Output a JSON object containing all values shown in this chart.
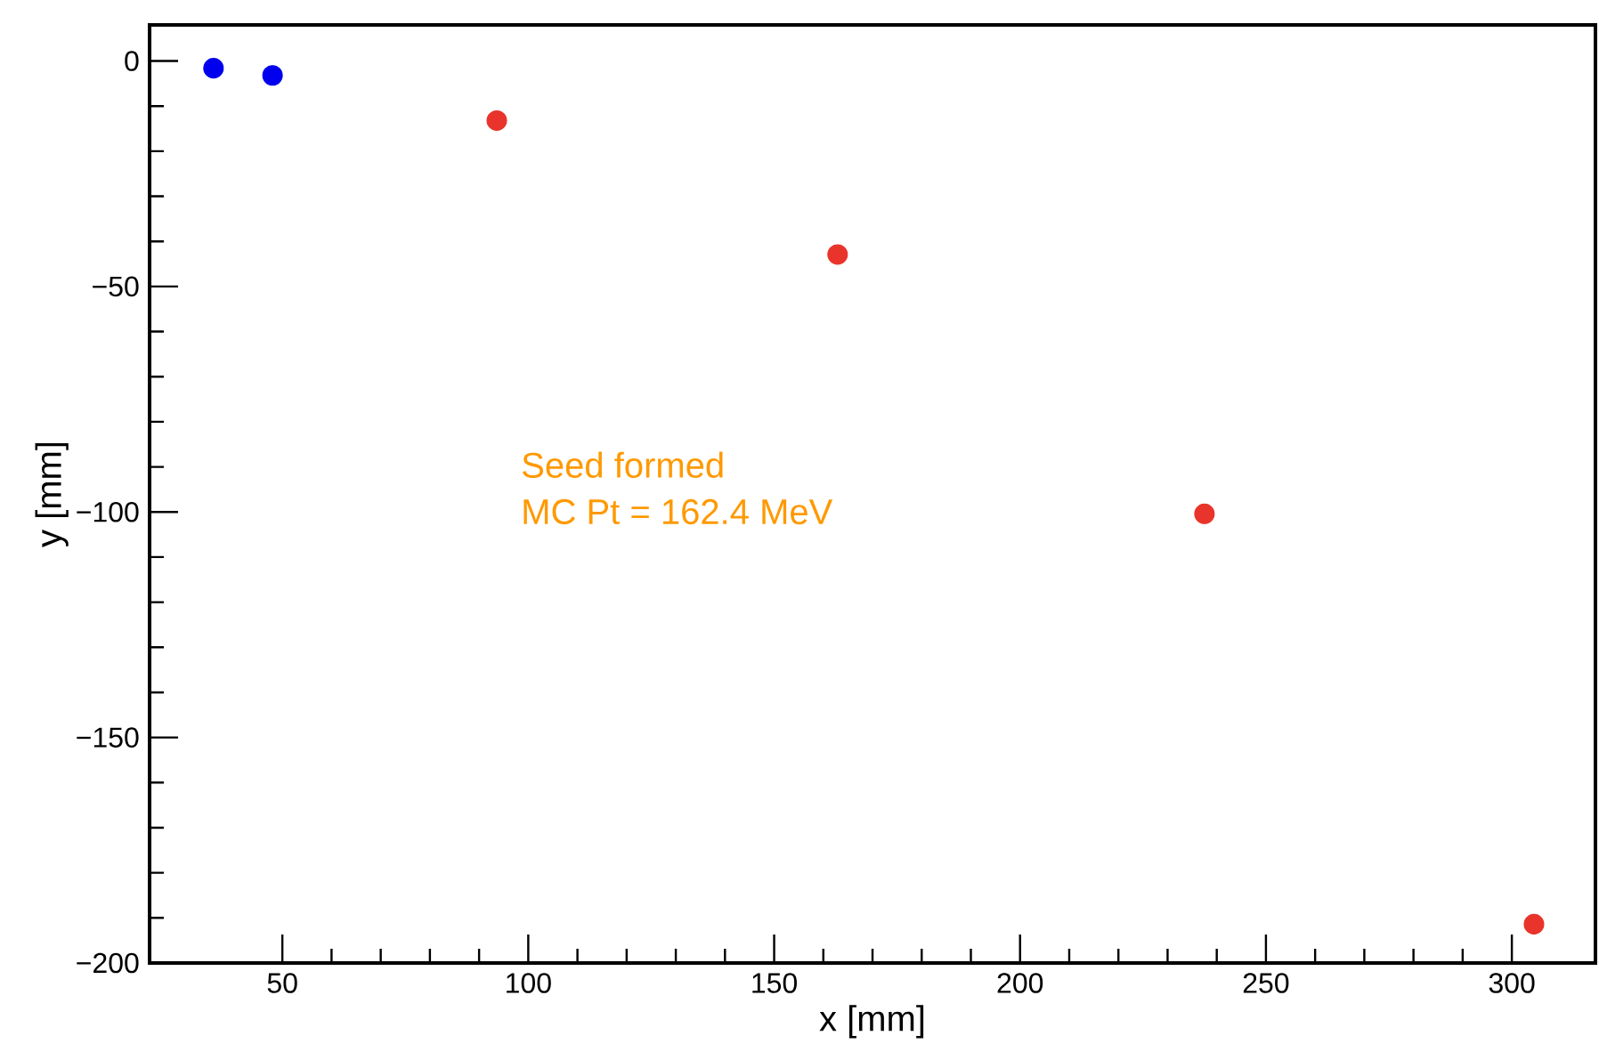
{
  "chart_data": {
    "type": "scatter",
    "xlabel": "x [mm]",
    "ylabel": "y [mm]",
    "annotations": [
      "Seed formed",
      "MC Pt = 162.4 MeV"
    ],
    "marker": "circle",
    "xlim": [
      23,
      317
    ],
    "ylim": [
      -200,
      8
    ],
    "xticks": [
      50,
      100,
      150,
      200,
      250,
      300
    ],
    "yticks": [
      {
        "value": -200,
        "label": "−200"
      },
      {
        "value": -150,
        "label": "−150"
      },
      {
        "value": -100,
        "label": "−100"
      },
      {
        "value": -50,
        "label": "−50"
      },
      0
    ],
    "series": [
      {
        "color": "#0000ee",
        "x": [
          36.0,
          48.0
        ],
        "values": [
          -1.6,
          -3.2
        ]
      },
      {
        "color": "#e8342a",
        "x": [
          93.6,
          162.9,
          237.5,
          304.5
        ],
        "values": [
          -13.2,
          -42.9,
          -100.4,
          -191.4
        ]
      }
    ]
  }
}
